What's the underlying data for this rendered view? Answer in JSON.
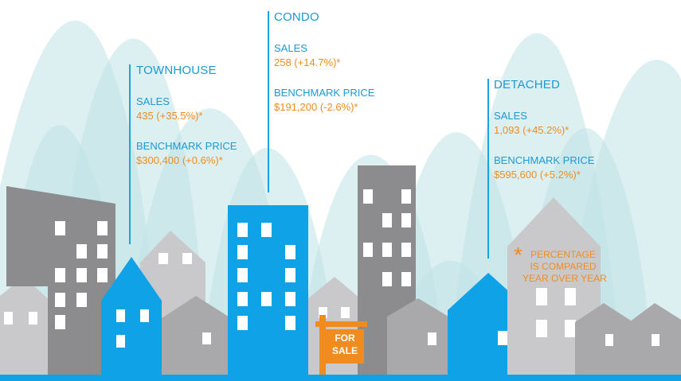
{
  "colors": {
    "accent_blue": "#1aa3e0",
    "building_blue": "#10a2e6",
    "gray_dark": "#8c8c8e",
    "gray_mid": "#a9a9ab",
    "gray_light": "#c9c9cb",
    "hill_teal": "#bfe2e6",
    "orange": "#f08c1f"
  },
  "panels": {
    "townhouse": {
      "title": "TOWNHOUSE",
      "sales_label": "SALES",
      "sales_value": "435 (+35.5%)*",
      "price_label": "BENCHMARK PRICE",
      "price_value": "$300,400 (+0.6%)*"
    },
    "condo": {
      "title": "CONDO",
      "sales_label": "SALES",
      "sales_value": "258 (+14.7%)*",
      "price_label": "BENCHMARK PRICE",
      "price_value": "$191,200 (-2.6%)*"
    },
    "detached": {
      "title": "DETACHED",
      "sales_label": "SALES",
      "sales_value": "1,093 (+45.2%)*",
      "price_label": "BENCHMARK PRICE",
      "price_value": "$595,600 (+5.2%)*"
    }
  },
  "footnote": {
    "symbol": "*",
    "line1": "PERCENTAGE",
    "line2": "IS COMPARED",
    "line3": "YEAR OVER YEAR"
  },
  "sign": {
    "line1": "FOR",
    "line2": "SALE"
  }
}
